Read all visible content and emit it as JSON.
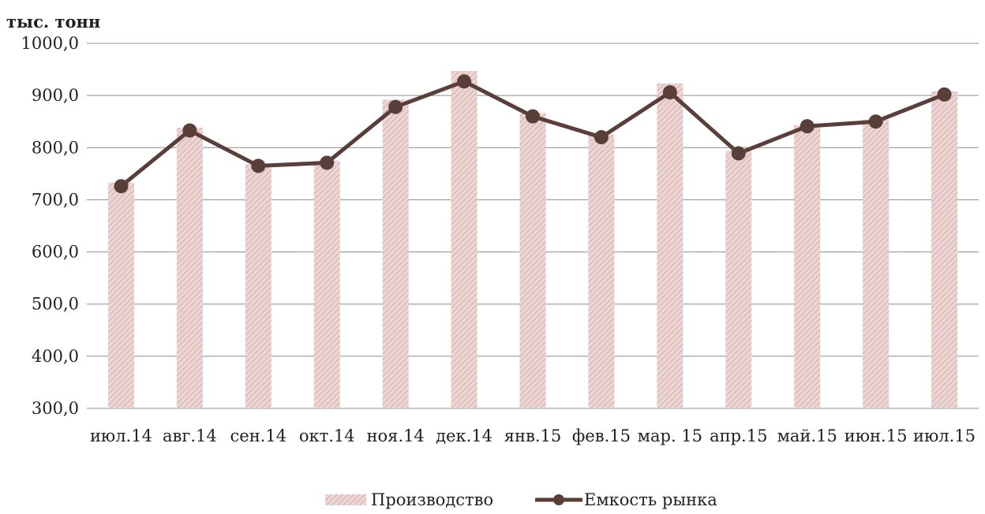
{
  "chart_data": {
    "type": "bar",
    "ylabel": "тыс. тонн",
    "ylim": [
      300,
      1000
    ],
    "yticks": [
      "1000,0",
      "900,0",
      "800,0",
      "700,0",
      "600,0",
      "500,0",
      "400,0",
      "300,0"
    ],
    "grid": true,
    "legend_position": "bottom",
    "categories": [
      "июл.14",
      "авг.14",
      "сен.14",
      "окт.14",
      "ноя.14",
      "дек.14",
      "янв.15",
      "фев.15",
      "мар. 15",
      "апр.15",
      "май.15",
      "июн.15",
      "июл.15"
    ],
    "series": [
      {
        "name": "Производство",
        "type": "bar",
        "color": "#e6c8c6",
        "values": [
          733,
          838,
          768,
          775,
          892,
          947,
          866,
          825,
          923,
          794,
          843,
          854,
          908
        ]
      },
      {
        "name": "Емкость рынка",
        "type": "line",
        "color": "#5a3e3a",
        "values": [
          726,
          833,
          765,
          771,
          878,
          927,
          860,
          820,
          906,
          789,
          841,
          850,
          902
        ]
      }
    ]
  }
}
